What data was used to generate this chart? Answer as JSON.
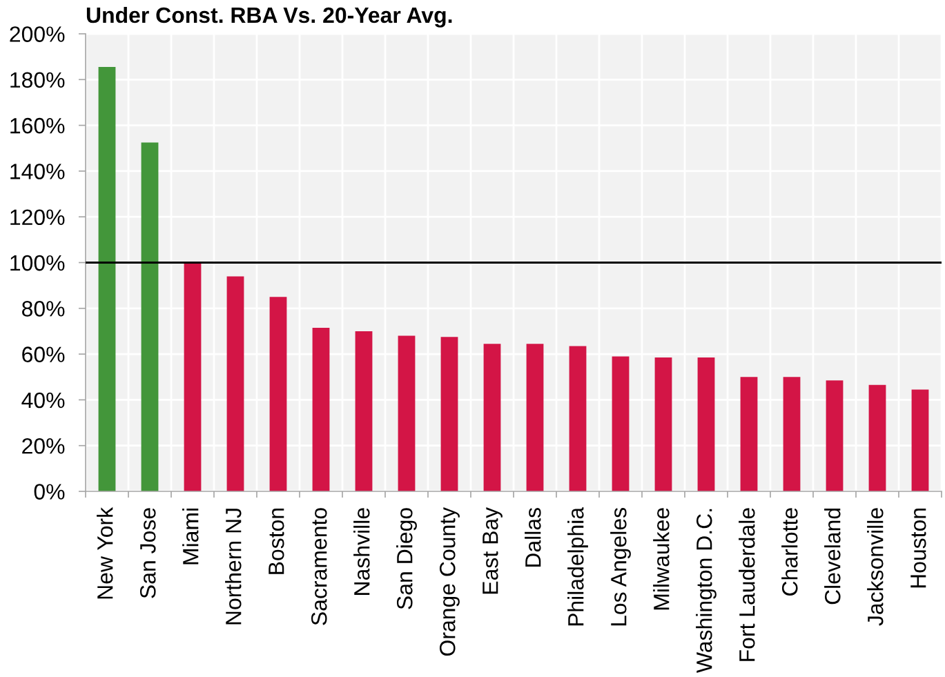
{
  "chart_data": {
    "type": "bar",
    "title": "Under Const. RBA Vs. 20-Year Avg.",
    "categories": [
      "New York",
      "San Jose",
      "Miami",
      "Northern NJ",
      "Boston",
      "Sacramento",
      "Nashville",
      "San Diego",
      "Orange County",
      "East Bay",
      "Dallas",
      "Philadelphia",
      "Los Angeles",
      "Milwaukee",
      "Washington D.C.",
      "Fort Lauderdale",
      "Charlotte",
      "Cleveland",
      "Jacksonville",
      "Houston"
    ],
    "values": [
      185.5,
      152.5,
      100,
      94,
      85,
      71.5,
      70,
      68,
      67.5,
      64.5,
      64.5,
      63.5,
      59,
      58.5,
      58.5,
      50,
      50,
      48.5,
      46.5,
      44.5
    ],
    "colors": [
      "#43963a",
      "#43963a",
      "#d31546",
      "#d31546",
      "#d31546",
      "#d31546",
      "#d31546",
      "#d31546",
      "#d31546",
      "#d31546",
      "#d31546",
      "#d31546",
      "#d31546",
      "#d31546",
      "#d31546",
      "#d31546",
      "#d31546",
      "#d31546",
      "#d31546",
      "#d31546"
    ],
    "ylim": [
      0,
      200
    ],
    "yticks": [
      {
        "value": 0,
        "label": "0%"
      },
      {
        "value": 20,
        "label": "20%"
      },
      {
        "value": 40,
        "label": "40%"
      },
      {
        "value": 60,
        "label": "60%"
      },
      {
        "value": 80,
        "label": "80%"
      },
      {
        "value": 100,
        "label": "100%"
      },
      {
        "value": 120,
        "label": "120%"
      },
      {
        "value": 140,
        "label": "140%"
      },
      {
        "value": 160,
        "label": "160%"
      },
      {
        "value": 180,
        "label": "180%"
      },
      {
        "value": 200,
        "label": "200%"
      }
    ],
    "ref_lines": [
      {
        "axis": "y",
        "value": 100,
        "color": "#000000"
      }
    ],
    "grid": true
  }
}
